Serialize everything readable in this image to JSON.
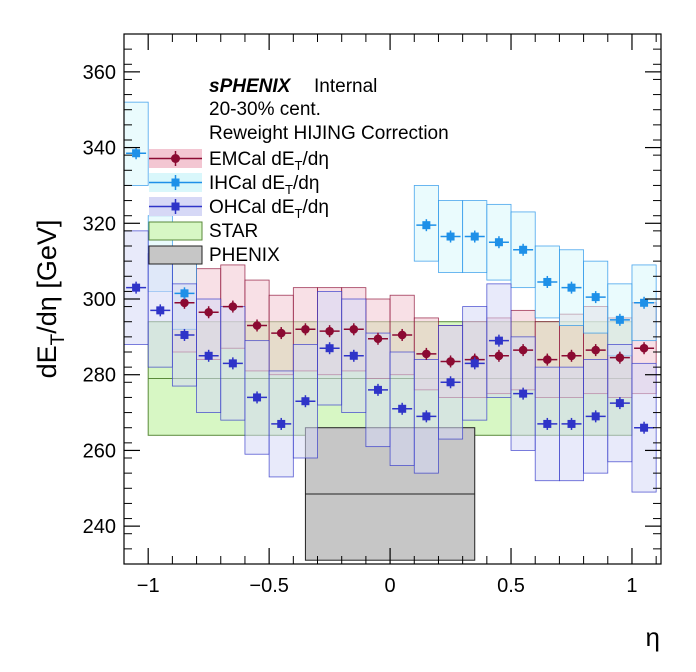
{
  "chart_data": {
    "type": "scatter",
    "xlabel": "η",
    "ylabel": "dE_T/dη [GeV]",
    "xlim": [
      -1.1,
      1.12
    ],
    "ylim": [
      230,
      370
    ],
    "x_ticks": [
      -1,
      -0.5,
      0,
      0.5,
      1
    ],
    "x_tick_labels": [
      "−1",
      "−0.5",
      "0",
      "0.5",
      "1"
    ],
    "y_ticks": [
      240,
      260,
      280,
      300,
      320,
      340,
      360
    ],
    "y_tick_labels": [
      "240",
      "260",
      "280",
      "300",
      "320",
      "340",
      "360"
    ],
    "legend_placement": "top-left",
    "annotations": {
      "brand": "sPHENIX",
      "status": "Internal",
      "centrality": "20-30% cent.",
      "correction": "Reweight HIJING Correction"
    },
    "bin_edges": [
      -1.1,
      -1.0,
      -0.9,
      -0.8,
      -0.7,
      -0.6,
      -0.5,
      -0.4,
      -0.3,
      -0.2,
      -0.1,
      0.0,
      0.1,
      0.2,
      0.3,
      0.4,
      0.5,
      0.6,
      0.7,
      0.8,
      0.9,
      1.0,
      1.1
    ],
    "series": [
      {
        "name": "EMCal dE_T/dη",
        "color": "#8b0a32",
        "fill": "#f3c6d2",
        "x": [
          -0.85,
          -0.75,
          -0.65,
          -0.55,
          -0.45,
          -0.35,
          -0.25,
          -0.15,
          -0.05,
          0.05,
          0.15,
          0.25,
          0.35,
          0.45,
          0.55,
          0.65,
          0.75,
          0.85,
          0.95,
          1.05
        ],
        "y": [
          299,
          296.5,
          298,
          293,
          291,
          292,
          291.5,
          292,
          289.5,
          290.5,
          285.5,
          283.5,
          284,
          285,
          286.5,
          284,
          285,
          286.5,
          284.5,
          287
        ],
        "y_sys_low": [
          286,
          284,
          287,
          281,
          280,
          281,
          280,
          281,
          279,
          280,
          276,
          274,
          274,
          275,
          276,
          274,
          274,
          275,
          274,
          275
        ],
        "y_sys_high": [
          312,
          308,
          309,
          305,
          301,
          303,
          303,
          303,
          300,
          301,
          295,
          293,
          294,
          295,
          297,
          294,
          296,
          298,
          295,
          299
        ]
      },
      {
        "name": "IHCal dE_T/dη",
        "color": "#1e90e8",
        "fill": "#d9f7fb",
        "x": [
          -1.05,
          -0.95,
          -0.85,
          0.15,
          0.25,
          0.35,
          0.45,
          0.55,
          0.65,
          0.75,
          0.85,
          0.95,
          1.05
        ],
        "y": [
          338.5,
          312,
          301.5,
          319.5,
          316.5,
          316.5,
          315,
          313,
          304.5,
          303,
          300.5,
          294.5,
          299
        ],
        "y_sys_low": [
          330,
          302,
          292,
          310,
          307,
          307,
          305,
          303,
          295,
          293,
          291,
          285,
          289
        ],
        "y_sys_high": [
          352,
          322,
          311,
          330,
          326,
          326,
          325,
          323,
          314,
          313,
          310,
          304,
          309
        ]
      },
      {
        "name": "OHCal dE_T/dη",
        "color": "#2f34c8",
        "fill": "#d6d8f6",
        "x": [
          -1.05,
          -0.95,
          -0.85,
          -0.75,
          -0.65,
          -0.55,
          -0.45,
          -0.35,
          -0.25,
          -0.15,
          -0.05,
          0.05,
          0.15,
          0.25,
          0.35,
          0.45,
          0.55,
          0.65,
          0.75,
          0.85,
          0.95,
          1.05
        ],
        "y": [
          303,
          297,
          290.5,
          285,
          283,
          274,
          267,
          273,
          287,
          285,
          276,
          271,
          269,
          278,
          283,
          289,
          275,
          267,
          267,
          269,
          272.5,
          266
        ],
        "y_sys_low": [
          288,
          282,
          277,
          270,
          268,
          259,
          253,
          258,
          272,
          270,
          261,
          256,
          254,
          263,
          268,
          274,
          260,
          252,
          252,
          254,
          257,
          249
        ],
        "y_sys_high": [
          318,
          312,
          304,
          300,
          298,
          289,
          281,
          288,
          302,
          300,
          291,
          286,
          284,
          293,
          298,
          304,
          290,
          282,
          282,
          284,
          288,
          283
        ]
      },
      {
        "name": "STAR",
        "type": "band",
        "color": "#5a8a3a",
        "fill": "#d7f7c4",
        "x_range": [
          -1.0,
          1.0
        ],
        "y_center": 279,
        "y_low": 264,
        "y_high": 294
      },
      {
        "name": "PHENIX",
        "type": "band",
        "color": "#222222",
        "fill": "#c6c6c6",
        "x_range": [
          -0.35,
          0.35
        ],
        "y_center": 248.5,
        "y_low": 231,
        "y_high": 266
      }
    ]
  }
}
